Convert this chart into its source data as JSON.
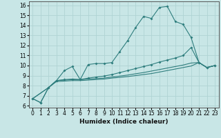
{
  "xlabel": "Humidex (Indice chaleur)",
  "xlim": [
    -0.5,
    23.5
  ],
  "ylim": [
    5.8,
    16.4
  ],
  "xticks": [
    0,
    1,
    2,
    3,
    4,
    5,
    6,
    7,
    8,
    9,
    10,
    11,
    12,
    13,
    14,
    15,
    16,
    17,
    18,
    19,
    20,
    21,
    22,
    23
  ],
  "yticks": [
    6,
    7,
    8,
    9,
    10,
    11,
    12,
    13,
    14,
    15,
    16
  ],
  "bg_color": "#c8e6e6",
  "line_color": "#2e7d7d",
  "grid_color": "#afd4d4",
  "line1_x": [
    0,
    1,
    2,
    3,
    4,
    5,
    6,
    7,
    8,
    9,
    10,
    11,
    12,
    13,
    14,
    15,
    16,
    17,
    18,
    19,
    20,
    21,
    22,
    23
  ],
  "line1_y": [
    6.7,
    6.3,
    7.8,
    8.5,
    9.5,
    9.9,
    8.6,
    10.1,
    10.2,
    10.2,
    10.3,
    11.4,
    12.5,
    13.8,
    14.9,
    14.7,
    15.8,
    15.9,
    14.4,
    14.1,
    12.8,
    10.3,
    9.8,
    10.0
  ],
  "line2_x": [
    0,
    1,
    2,
    3,
    4,
    5,
    6,
    7,
    8,
    9,
    10,
    11,
    12,
    13,
    14,
    15,
    16,
    17,
    18,
    19,
    20,
    21,
    22,
    23
  ],
  "line2_y": [
    6.7,
    6.3,
    7.8,
    8.5,
    8.6,
    8.65,
    8.6,
    8.75,
    8.85,
    8.95,
    9.1,
    9.3,
    9.5,
    9.7,
    9.9,
    10.1,
    10.35,
    10.55,
    10.75,
    11.0,
    11.8,
    10.3,
    9.8,
    10.0
  ],
  "line3_x": [
    0,
    2,
    3,
    4,
    5,
    6,
    7,
    8,
    9,
    10,
    11,
    12,
    13,
    14,
    15,
    16,
    17,
    18,
    19,
    20,
    21,
    22,
    23
  ],
  "line3_y": [
    6.7,
    7.8,
    8.5,
    8.55,
    8.6,
    8.6,
    8.65,
    8.7,
    8.75,
    8.85,
    8.95,
    9.05,
    9.18,
    9.3,
    9.45,
    9.6,
    9.75,
    9.9,
    10.05,
    10.25,
    10.3,
    9.8,
    10.0
  ],
  "line4_x": [
    0,
    2,
    3,
    4,
    5,
    6,
    7,
    8,
    9,
    10,
    11,
    12,
    13,
    14,
    15,
    16,
    17,
    18,
    19,
    20,
    21,
    22,
    23
  ],
  "line4_y": [
    6.7,
    7.8,
    8.4,
    8.45,
    8.5,
    8.5,
    8.55,
    8.6,
    8.65,
    8.75,
    8.82,
    8.9,
    9.0,
    9.1,
    9.2,
    9.35,
    9.5,
    9.65,
    9.8,
    9.95,
    10.3,
    9.8,
    10.0
  ]
}
